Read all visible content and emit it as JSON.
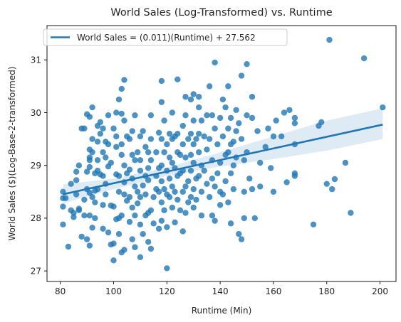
{
  "chart_data": {
    "type": "scatter",
    "title": "World Sales (Log-Transformed) vs. Runtime",
    "xlabel": "Runtime (Min)",
    "ylabel": "World Sales ($)(Log-Base-2-transformed)",
    "xlim": [
      75,
      206
    ],
    "ylim": [
      26.8,
      31.65
    ],
    "xticks": [
      80,
      100,
      120,
      140,
      160,
      180,
      200
    ],
    "yticks": [
      27,
      28,
      29,
      30,
      31
    ],
    "grid": false,
    "legend": {
      "position": "top-left",
      "label": "World Sales = (0.011)(Runtime) + 27.562"
    },
    "colors": {
      "points": "#1f77b4",
      "line": "#1f77b4",
      "band": "#1f77b4"
    },
    "regression": {
      "slope": 0.011,
      "intercept": 27.562,
      "x_range": [
        81,
        201
      ]
    },
    "confidence_band": [
      [
        81,
        28.28,
        28.64
      ],
      [
        100,
        28.55,
        28.75
      ],
      [
        120,
        28.8,
        28.96
      ],
      [
        140,
        28.98,
        29.25
      ],
      [
        160,
        29.12,
        29.55
      ],
      [
        180,
        29.28,
        29.85
      ],
      [
        201,
        29.5,
        30.08
      ]
    ],
    "series": [
      {
        "points": [
          [
            81,
            28.5
          ],
          [
            81,
            28.38
          ],
          [
            81,
            28.22
          ],
          [
            81,
            27.88
          ],
          [
            82,
            28.38
          ],
          [
            83,
            27.46
          ],
          [
            84,
            28.15
          ],
          [
            84,
            28.65
          ],
          [
            85,
            28.02
          ],
          [
            85,
            28.1
          ],
          [
            86,
            28.88
          ],
          [
            86,
            28.45
          ],
          [
            86,
            28.72
          ],
          [
            87,
            29.0
          ],
          [
            87,
            28.18
          ],
          [
            87,
            28.15
          ],
          [
            88,
            29.7
          ],
          [
            88,
            27.65
          ],
          [
            89,
            29.7
          ],
          [
            89,
            28.35
          ],
          [
            89,
            28.05
          ],
          [
            90,
            29.97
          ],
          [
            90,
            28.88
          ],
          [
            90,
            28.55
          ],
          [
            90,
            27.6
          ],
          [
            91,
            29.92
          ],
          [
            91,
            29.3
          ],
          [
            91,
            29.15
          ],
          [
            91,
            29.1
          ],
          [
            91,
            28.97
          ],
          [
            91,
            28.48
          ],
          [
            91,
            28.05
          ],
          [
            91,
            27.48
          ],
          [
            92,
            30.1
          ],
          [
            92,
            29.5
          ],
          [
            92,
            29.25
          ],
          [
            92,
            28.4
          ],
          [
            92,
            27.82
          ],
          [
            93,
            28.85
          ],
          [
            93,
            28.52
          ],
          [
            93,
            28.3
          ],
          [
            93,
            28.0
          ],
          [
            94,
            29.75
          ],
          [
            94,
            29.45
          ],
          [
            94,
            29.1
          ],
          [
            94,
            28.9
          ],
          [
            94,
            28.55
          ],
          [
            95,
            29.82
          ],
          [
            95,
            29.6
          ],
          [
            95,
            28.83
          ],
          [
            96,
            29.7
          ],
          [
            96,
            29.25
          ],
          [
            96,
            28.8
          ],
          [
            96,
            28.25
          ],
          [
            96,
            27.8
          ],
          [
            97,
            29.45
          ],
          [
            97,
            29.15
          ],
          [
            97,
            28.65
          ],
          [
            97,
            28.45
          ],
          [
            98,
            29.95
          ],
          [
            98,
            29.4
          ],
          [
            98,
            28.98
          ],
          [
            98,
            27.73
          ],
          [
            99,
            29.05
          ],
          [
            99,
            28.24
          ],
          [
            99,
            27.5
          ],
          [
            100,
            29.7
          ],
          [
            100,
            28.22
          ],
          [
            100,
            27.52
          ],
          [
            100,
            27.2
          ],
          [
            101,
            30.0
          ],
          [
            101,
            29.55
          ],
          [
            101,
            29.35
          ],
          [
            101,
            28.83
          ],
          [
            101,
            27.98
          ],
          [
            102,
            30.25
          ],
          [
            102,
            28.8
          ],
          [
            102,
            28.5
          ],
          [
            102,
            28.0
          ],
          [
            102,
            27.7
          ],
          [
            103,
            30.45
          ],
          [
            103,
            29.98
          ],
          [
            103,
            29.4
          ],
          [
            103,
            29.2
          ],
          [
            103,
            28.05
          ],
          [
            103,
            27.35
          ],
          [
            104,
            30.62
          ],
          [
            104,
            29.85
          ],
          [
            104,
            29.0
          ],
          [
            104,
            28.68
          ],
          [
            104,
            28.45
          ],
          [
            104,
            27.4
          ],
          [
            105,
            29.55
          ],
          [
            105,
            28.85
          ],
          [
            105,
            28.33
          ],
          [
            106,
            29.5
          ],
          [
            106,
            28.92
          ],
          [
            106,
            28.4
          ],
          [
            106,
            27.93
          ],
          [
            107,
            29.65
          ],
          [
            107,
            29.2
          ],
          [
            107,
            28.75
          ],
          [
            107,
            28.2
          ],
          [
            107,
            27.6
          ],
          [
            108,
            29.95
          ],
          [
            108,
            29.1
          ],
          [
            108,
            28.6
          ],
          [
            108,
            28.05
          ],
          [
            108,
            27.45
          ],
          [
            109,
            29.25
          ],
          [
            109,
            28.5
          ],
          [
            109,
            28.28
          ],
          [
            110,
            29.55
          ],
          [
            110,
            29.1
          ],
          [
            110,
            28.9
          ],
          [
            110,
            28.4
          ],
          [
            110,
            27.88
          ],
          [
            110,
            27.26
          ],
          [
            111,
            29.65
          ],
          [
            111,
            28.62
          ],
          [
            111,
            27.7
          ],
          [
            112,
            29.35
          ],
          [
            112,
            28.8
          ],
          [
            112,
            28.45
          ],
          [
            112,
            28.05
          ],
          [
            113,
            29.25
          ],
          [
            113,
            28.95
          ],
          [
            113,
            28.72
          ],
          [
            113,
            28.1
          ],
          [
            113,
            27.55
          ],
          [
            114,
            29.95
          ],
          [
            114,
            29.5
          ],
          [
            114,
            29.1
          ],
          [
            114,
            28.15
          ],
          [
            114,
            27.42
          ],
          [
            115,
            28.4
          ],
          [
            115,
            27.9
          ],
          [
            116,
            29.25
          ],
          [
            116,
            28.8
          ],
          [
            116,
            28.55
          ],
          [
            117,
            29.62
          ],
          [
            117,
            28.95
          ],
          [
            117,
            28.5
          ],
          [
            117,
            27.8
          ],
          [
            118,
            30.6
          ],
          [
            118,
            30.2
          ],
          [
            118,
            29.5
          ],
          [
            118,
            29.0
          ],
          [
            118,
            28.7
          ],
          [
            118,
            28.3
          ],
          [
            118,
            27.95
          ],
          [
            119,
            29.85
          ],
          [
            119,
            29.25
          ],
          [
            119,
            28.55
          ],
          [
            119,
            28.15
          ],
          [
            120,
            29.4
          ],
          [
            120,
            28.9
          ],
          [
            120,
            28.45
          ],
          [
            120,
            27.83
          ],
          [
            120,
            27.05
          ],
          [
            121,
            29.6
          ],
          [
            121,
            29.15
          ],
          [
            121,
            28.75
          ],
          [
            121,
            28.4
          ],
          [
            122,
            30.0
          ],
          [
            122,
            29.5
          ],
          [
            122,
            29.05
          ],
          [
            122,
            28.6
          ],
          [
            122,
            28.2
          ],
          [
            123,
            29.55
          ],
          [
            123,
            28.95
          ],
          [
            123,
            28.5
          ],
          [
            123,
            27.92
          ],
          [
            124,
            30.63
          ],
          [
            124,
            29.6
          ],
          [
            124,
            29.25
          ],
          [
            124,
            28.8
          ],
          [
            124,
            28.35
          ],
          [
            125,
            29.2
          ],
          [
            125,
            28.85
          ],
          [
            125,
            28.15
          ],
          [
            126,
            29.75
          ],
          [
            126,
            29.4
          ],
          [
            126,
            28.9
          ],
          [
            126,
            28.5
          ],
          [
            126,
            27.75
          ],
          [
            127,
            30.3
          ],
          [
            127,
            29.95
          ],
          [
            127,
            29.15
          ],
          [
            127,
            28.6
          ],
          [
            127,
            28.1
          ],
          [
            128,
            29.5
          ],
          [
            128,
            28.7
          ],
          [
            128,
            28.3
          ],
          [
            129,
            30.25
          ],
          [
            129,
            29.6
          ],
          [
            129,
            29.2
          ],
          [
            129,
            28.9
          ],
          [
            129,
            28.4
          ],
          [
            130,
            30.35
          ],
          [
            130,
            29.85
          ],
          [
            130,
            29.4
          ],
          [
            130,
            29.05
          ],
          [
            130,
            28.55
          ],
          [
            130,
            28.2
          ],
          [
            131,
            29.5
          ],
          [
            131,
            28.75
          ],
          [
            131,
            28.35
          ],
          [
            132,
            30.3
          ],
          [
            132,
            30.1
          ],
          [
            132,
            29.6
          ],
          [
            132,
            29.25
          ],
          [
            132,
            28.8
          ],
          [
            133,
            29.85
          ],
          [
            133,
            29.0
          ],
          [
            133,
            28.5
          ],
          [
            133,
            28.05
          ],
          [
            134,
            29.55
          ],
          [
            134,
            28.9
          ],
          [
            135,
            29.95
          ],
          [
            135,
            29.3
          ],
          [
            135,
            28.65
          ],
          [
            136,
            30.5
          ],
          [
            136,
            29.5
          ],
          [
            136,
            28.4
          ],
          [
            137,
            29.95
          ],
          [
            137,
            29.1
          ],
          [
            137,
            28.75
          ],
          [
            137,
            28.05
          ],
          [
            138,
            30.95
          ],
          [
            138,
            29.7
          ],
          [
            138,
            28.6
          ],
          [
            138,
            27.95
          ],
          [
            139,
            29.4
          ],
          [
            139,
            28.85
          ],
          [
            140,
            29.9
          ],
          [
            140,
            29.05
          ],
          [
            140,
            28.5
          ],
          [
            140,
            28.25
          ],
          [
            141,
            30.25
          ],
          [
            141,
            29.55
          ],
          [
            141,
            28.45
          ],
          [
            142,
            30.1
          ],
          [
            142,
            29.2
          ],
          [
            142,
            28.7
          ],
          [
            143,
            30.5
          ],
          [
            143,
            29.7
          ],
          [
            143,
            29.25
          ],
          [
            143,
            28.3
          ],
          [
            144,
            29.9
          ],
          [
            144,
            29.4
          ],
          [
            144,
            28.85
          ],
          [
            144,
            27.9
          ],
          [
            145,
            29.45
          ],
          [
            145,
            29.0
          ],
          [
            145,
            28.55
          ],
          [
            146,
            30.05
          ],
          [
            146,
            29.65
          ],
          [
            146,
            29.15
          ],
          [
            147,
            27.7
          ],
          [
            147,
            29.8
          ],
          [
            148,
            30.7
          ],
          [
            148,
            29.5
          ],
          [
            148,
            27.6
          ],
          [
            149,
            29.1
          ],
          [
            149,
            28.5
          ],
          [
            149,
            28.0
          ],
          [
            150,
            30.92
          ],
          [
            150,
            29.95
          ],
          [
            150,
            29.25
          ],
          [
            151,
            28.75
          ],
          [
            152,
            30.3
          ],
          [
            152,
            29.9
          ],
          [
            152,
            28.55
          ],
          [
            153,
            28.0
          ],
          [
            154,
            29.65
          ],
          [
            155,
            29.05
          ],
          [
            155,
            28.6
          ],
          [
            157,
            29.35
          ],
          [
            158,
            29.7
          ],
          [
            159,
            28.95
          ],
          [
            160,
            29.55
          ],
          [
            160,
            28.5
          ],
          [
            161,
            29.85
          ],
          [
            163,
            29.55
          ],
          [
            164,
            30.0
          ],
          [
            165,
            28.68
          ],
          [
            166,
            30.05
          ],
          [
            168,
            29.9
          ],
          [
            168,
            29.8
          ],
          [
            168,
            29.4
          ],
          [
            168,
            28.85
          ],
          [
            168,
            28.8
          ],
          [
            175,
            27.88
          ],
          [
            177,
            29.75
          ],
          [
            178,
            29.82
          ],
          [
            180,
            28.65
          ],
          [
            181,
            31.38
          ],
          [
            182,
            28.55
          ],
          [
            183,
            28.74
          ],
          [
            187,
            29.05
          ],
          [
            189,
            28.1
          ],
          [
            194,
            31.03
          ],
          [
            201,
            30.1
          ]
        ]
      }
    ]
  }
}
